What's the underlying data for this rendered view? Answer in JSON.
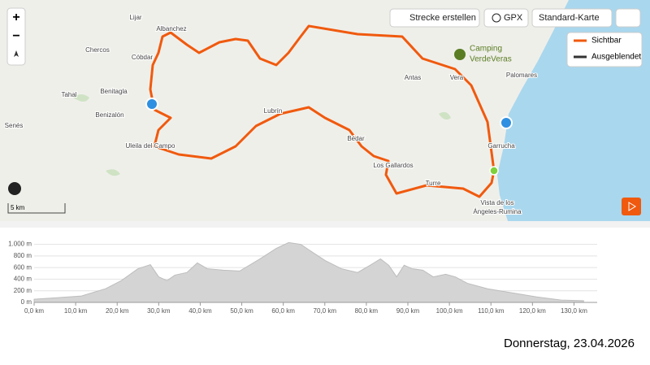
{
  "map": {
    "places": [
      {
        "label": "Lijar"
      },
      {
        "label": "Albanchez"
      },
      {
        "label": "Chercos"
      },
      {
        "label": "Cóbdar"
      },
      {
        "label": "Tahal"
      },
      {
        "label": "Benitagla"
      },
      {
        "label": "Benizalón"
      },
      {
        "label": "Senés"
      },
      {
        "label": "Uleila del Campo"
      },
      {
        "label": "Lubrín"
      },
      {
        "label": "Bédar"
      },
      {
        "label": "Los Gallardos"
      },
      {
        "label": "Turre"
      },
      {
        "label": "Vera"
      },
      {
        "label": "Antas"
      },
      {
        "label": "Garrucha"
      },
      {
        "label": "Palomares"
      },
      {
        "label": "Vista de los"
      },
      {
        "label": "Ángeles-Rumina"
      }
    ],
    "poi": [
      "Camping",
      "VerdeVeras"
    ],
    "toolbar": {
      "route": "Strecke erstellen",
      "gpx": "GPX",
      "layer": "Standard-Karte"
    },
    "zoom": {
      "in": "+",
      "out": "−"
    },
    "legend": {
      "visible": "Sichtbar",
      "hidden": "Ausgeblendet"
    },
    "scale": "5 km"
  },
  "elevation_profile": {
    "x": [
      0,
      5.5,
      11.4,
      17.2,
      21,
      25,
      28,
      30,
      32,
      33.9,
      36.8,
      39.3,
      41.7,
      45.6,
      49.5,
      54.4,
      58.3,
      61.3,
      64.2,
      67.1,
      70.1,
      74,
      77.9,
      80.9,
      83.4,
      85.4,
      87.3,
      89.1,
      91,
      93.6,
      96.1,
      99.1,
      101.4,
      104.3,
      109.2,
      115.1,
      121,
      126.9,
      132.3
    ],
    "values": [
      55,
      80,
      110,
      235,
      375,
      580,
      650,
      440,
      375,
      470,
      515,
      680,
      580,
      555,
      540,
      750,
      930,
      1030,
      1000,
      860,
      720,
      580,
      515,
      640,
      750,
      640,
      440,
      640,
      580,
      555,
      440,
      485,
      440,
      330,
      235,
      165,
      95,
      40,
      30
    ],
    "xlim": [
      0,
      135
    ],
    "ylim": [
      0,
      1050
    ],
    "xticks": [
      {
        "value": 0,
        "label": "0,0 km"
      },
      {
        "value": 10,
        "label": "10,0 km"
      },
      {
        "value": 20,
        "label": "20,0 km"
      },
      {
        "value": 30,
        "label": "30,0 km"
      },
      {
        "value": 40,
        "label": "40,0 km"
      },
      {
        "value": 50,
        "label": "50,0 km"
      },
      {
        "value": 60,
        "label": "60,0 km"
      },
      {
        "value": 70,
        "label": "70,0 km"
      },
      {
        "value": 80,
        "label": "80,0 km"
      },
      {
        "value": 90,
        "label": "90,0 km"
      },
      {
        "value": 100,
        "label": "100,0 km"
      },
      {
        "value": 110,
        "label": "110,0 km"
      },
      {
        "value": 120,
        "label": "120,0 km"
      },
      {
        "value": 130,
        "label": "130,0 km"
      }
    ],
    "yticks": [
      {
        "value": 0,
        "label": "0 m"
      },
      {
        "value": 200,
        "label": "200 m"
      },
      {
        "value": 400,
        "label": "400 m"
      },
      {
        "value": 600,
        "label": "600 m"
      },
      {
        "value": 800,
        "label": "800 m"
      },
      {
        "value": 1000,
        "label": "1.000 m"
      }
    ]
  },
  "footer": {
    "date": "Donnerstag, 23.04.2026"
  }
}
